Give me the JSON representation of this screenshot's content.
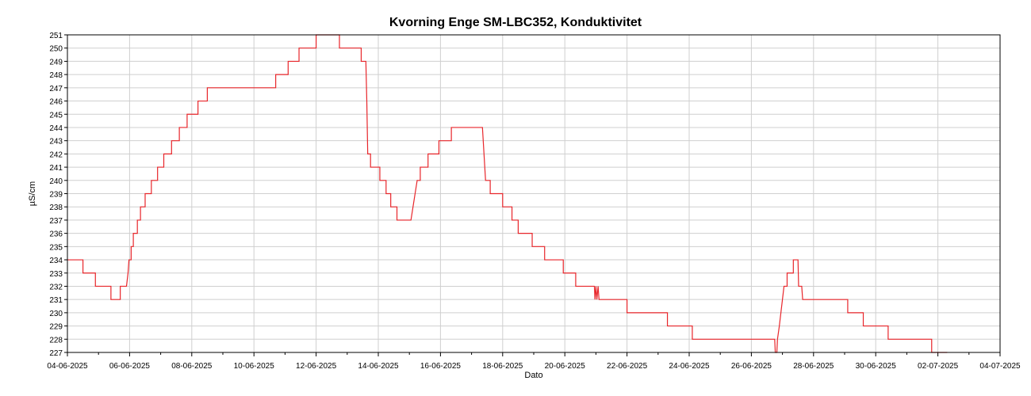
{
  "chart_data": {
    "type": "line",
    "title": "Kvorning Enge SM-LBC352, Konduktivitet",
    "xlabel": "Dato",
    "ylabel": "µS/cm",
    "ylim": [
      227,
      251
    ],
    "xlim": [
      0,
      30
    ],
    "grid": true,
    "x_ticks": [
      {
        "x": 0,
        "label": "04-06-2025"
      },
      {
        "x": 2,
        "label": "06-06-2025"
      },
      {
        "x": 4,
        "label": "08-06-2025"
      },
      {
        "x": 6,
        "label": "10-06-2025"
      },
      {
        "x": 8,
        "label": "12-06-2025"
      },
      {
        "x": 10,
        "label": "14-06-2025"
      },
      {
        "x": 12,
        "label": "16-06-2025"
      },
      {
        "x": 14,
        "label": "18-06-2025"
      },
      {
        "x": 16,
        "label": "20-06-2025"
      },
      {
        "x": 18,
        "label": "22-06-2025"
      },
      {
        "x": 20,
        "label": "24-06-2025"
      },
      {
        "x": 22,
        "label": "26-06-2025"
      },
      {
        "x": 24,
        "label": "28-06-2025"
      },
      {
        "x": 26,
        "label": "30-06-2025"
      },
      {
        "x": 28,
        "label": "02-07-2025"
      },
      {
        "x": 30,
        "label": "04-07-2025"
      }
    ],
    "y_ticks": [
      227,
      228,
      229,
      230,
      231,
      232,
      233,
      234,
      235,
      236,
      237,
      238,
      239,
      240,
      241,
      242,
      243,
      244,
      245,
      246,
      247,
      248,
      249,
      250,
      251
    ],
    "series": [
      {
        "color": "#e8262b",
        "points": [
          [
            0,
            234
          ],
          [
            0.5,
            234
          ],
          [
            0.5,
            233
          ],
          [
            0.9,
            233
          ],
          [
            0.9,
            232
          ],
          [
            1.4,
            232
          ],
          [
            1.4,
            231
          ],
          [
            1.7,
            231
          ],
          [
            1.7,
            232
          ],
          [
            1.9,
            232
          ],
          [
            1.95,
            233
          ],
          [
            1.98,
            234
          ],
          [
            2.05,
            234
          ],
          [
            2.05,
            235
          ],
          [
            2.12,
            235
          ],
          [
            2.12,
            236
          ],
          [
            2.25,
            236
          ],
          [
            2.25,
            237
          ],
          [
            2.35,
            237
          ],
          [
            2.35,
            238
          ],
          [
            2.5,
            238
          ],
          [
            2.5,
            239
          ],
          [
            2.7,
            239
          ],
          [
            2.7,
            240
          ],
          [
            2.9,
            240
          ],
          [
            2.9,
            241
          ],
          [
            3.1,
            241
          ],
          [
            3.1,
            242
          ],
          [
            3.35,
            242
          ],
          [
            3.35,
            243
          ],
          [
            3.6,
            243
          ],
          [
            3.6,
            244
          ],
          [
            3.85,
            244
          ],
          [
            3.85,
            245
          ],
          [
            4.2,
            245
          ],
          [
            4.2,
            246
          ],
          [
            4.5,
            246
          ],
          [
            4.5,
            247
          ],
          [
            5.9,
            247
          ],
          [
            6.7,
            247
          ],
          [
            6.7,
            248
          ],
          [
            7.1,
            248
          ],
          [
            7.1,
            249
          ],
          [
            7.45,
            249
          ],
          [
            7.45,
            250
          ],
          [
            8.0,
            250
          ],
          [
            8.0,
            251
          ],
          [
            8.75,
            251
          ],
          [
            8.75,
            250
          ],
          [
            9.45,
            250
          ],
          [
            9.45,
            249
          ],
          [
            9.6,
            249
          ],
          [
            9.63,
            246
          ],
          [
            9.66,
            242
          ],
          [
            9.75,
            242
          ],
          [
            9.75,
            241
          ],
          [
            10.05,
            241
          ],
          [
            10.05,
            240
          ],
          [
            10.25,
            240
          ],
          [
            10.25,
            239
          ],
          [
            10.4,
            239
          ],
          [
            10.4,
            238
          ],
          [
            10.6,
            238
          ],
          [
            10.6,
            237
          ],
          [
            11.05,
            237
          ],
          [
            11.25,
            240
          ],
          [
            11.35,
            240
          ],
          [
            11.35,
            241
          ],
          [
            11.6,
            241
          ],
          [
            11.6,
            242
          ],
          [
            11.95,
            242
          ],
          [
            11.95,
            243
          ],
          [
            12.35,
            243
          ],
          [
            12.35,
            244
          ],
          [
            13.35,
            244
          ],
          [
            13.45,
            240
          ],
          [
            13.6,
            240
          ],
          [
            13.6,
            239
          ],
          [
            14.0,
            239
          ],
          [
            14.0,
            238
          ],
          [
            14.3,
            238
          ],
          [
            14.3,
            237
          ],
          [
            14.5,
            237
          ],
          [
            14.5,
            236
          ],
          [
            14.95,
            236
          ],
          [
            14.95,
            235
          ],
          [
            15.35,
            235
          ],
          [
            15.35,
            234
          ],
          [
            15.95,
            234
          ],
          [
            15.95,
            233
          ],
          [
            16.35,
            233
          ],
          [
            16.35,
            232
          ],
          [
            16.95,
            232
          ],
          [
            16.97,
            231
          ],
          [
            17.0,
            232
          ],
          [
            17.03,
            231
          ],
          [
            17.07,
            232
          ],
          [
            17.1,
            231
          ],
          [
            18.0,
            231
          ],
          [
            18.0,
            230
          ],
          [
            19.3,
            230
          ],
          [
            19.3,
            229
          ],
          [
            20.1,
            229
          ],
          [
            20.1,
            228
          ],
          [
            22.75,
            228
          ],
          [
            22.77,
            227
          ],
          [
            22.82,
            227
          ],
          [
            22.84,
            228
          ],
          [
            22.9,
            229
          ],
          [
            22.95,
            230
          ],
          [
            23.0,
            231
          ],
          [
            23.05,
            232
          ],
          [
            23.15,
            232
          ],
          [
            23.15,
            233
          ],
          [
            23.35,
            233
          ],
          [
            23.35,
            234
          ],
          [
            23.5,
            234
          ],
          [
            23.52,
            232
          ],
          [
            23.62,
            232
          ],
          [
            23.65,
            231
          ],
          [
            25.1,
            231
          ],
          [
            25.1,
            230
          ],
          [
            25.6,
            230
          ],
          [
            25.6,
            229
          ],
          [
            26.4,
            229
          ],
          [
            26.4,
            228
          ],
          [
            27.8,
            228
          ],
          [
            27.8,
            227
          ],
          [
            28.3,
            227
          ]
        ]
      }
    ]
  }
}
